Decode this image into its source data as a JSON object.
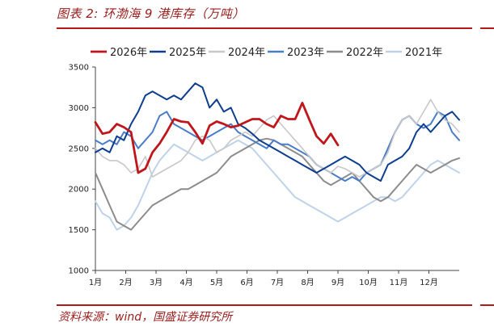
{
  "header": {
    "title": "图表 2:  环渤海 9 港库存（万吨）"
  },
  "footer": {
    "source": "资料来源：wind，国盛证券研究所"
  },
  "colors": {
    "accent": "#b51a1a"
  },
  "chart_data": {
    "type": "line",
    "title": "",
    "xlabel": "",
    "ylabel": "",
    "ylim": [
      1000,
      3500
    ],
    "yticks": [
      1000,
      1500,
      2000,
      2500,
      3000,
      3500
    ],
    "xticks": [
      "1月",
      "2月",
      "3月",
      "4月",
      "5月",
      "6月",
      "7月",
      "8月",
      "9月",
      "10月",
      "11月",
      "12月"
    ],
    "x_unit": "week of year (1-52)",
    "legend_position": "top",
    "grid": false,
    "series": [
      {
        "name": "2026年",
        "color": "#c0161b",
        "width": 2.8,
        "x": [
          1,
          2,
          3,
          4,
          5,
          6,
          7,
          8,
          9,
          10,
          11,
          12,
          13,
          14,
          15,
          16,
          17,
          18,
          19,
          20,
          21,
          22,
          23,
          24,
          25,
          26,
          27,
          28,
          29,
          30,
          31,
          32,
          33,
          34,
          35
        ],
        "y": [
          2820,
          2680,
          2700,
          2800,
          2760,
          2700,
          2200,
          2250,
          2450,
          2560,
          2700,
          2860,
          2830,
          2820,
          2700,
          2560,
          2780,
          2830,
          2800,
          2760,
          2780,
          2820,
          2860,
          2860,
          2800,
          2760,
          2900,
          2860,
          2860,
          3060,
          2850,
          2650,
          2560,
          2680,
          2540
        ]
      },
      {
        "name": "2025年",
        "color": "#0c3d8f",
        "width": 2.0,
        "x": [
          1,
          2,
          3,
          4,
          5,
          6,
          7,
          8,
          9,
          10,
          11,
          12,
          13,
          14,
          15,
          16,
          17,
          18,
          19,
          20,
          21,
          22,
          23,
          24,
          25,
          26,
          27,
          28,
          29,
          30,
          31,
          32,
          33,
          34,
          35,
          36,
          37,
          38,
          39,
          40,
          41,
          42,
          43,
          44,
          45,
          46,
          47,
          48,
          49,
          50,
          51,
          52
        ],
        "y": [
          2450,
          2500,
          2450,
          2650,
          2600,
          2800,
          2950,
          3150,
          3200,
          3150,
          3100,
          3150,
          3100,
          3200,
          3300,
          3250,
          3000,
          3100,
          2950,
          3000,
          2800,
          2750,
          2680,
          2600,
          2550,
          2500,
          2450,
          2400,
          2350,
          2300,
          2250,
          2200,
          2250,
          2300,
          2350,
          2400,
          2350,
          2300,
          2200,
          2150,
          2100,
          2300,
          2350,
          2400,
          2500,
          2700,
          2800,
          2700,
          2800,
          2900,
          2950,
          2850
        ]
      },
      {
        "name": "2024年",
        "color": "#c8c8c8",
        "width": 1.6,
        "x": [
          1,
          2,
          3,
          4,
          5,
          6,
          7,
          8,
          9,
          10,
          11,
          12,
          13,
          14,
          15,
          16,
          17,
          18,
          19,
          20,
          21,
          22,
          23,
          24,
          25,
          26,
          27,
          28,
          29,
          30,
          31,
          32,
          33,
          34,
          35,
          36,
          37,
          38,
          39,
          40,
          41,
          42,
          43,
          44,
          45,
          46,
          47,
          48,
          49,
          50,
          51,
          52
        ],
        "y": [
          2500,
          2400,
          2350,
          2350,
          2300,
          2200,
          2250,
          2400,
          2150,
          2200,
          2250,
          2300,
          2350,
          2450,
          2600,
          2650,
          2600,
          2450,
          2500,
          2600,
          2650,
          2700,
          2650,
          2750,
          2850,
          2900,
          2800,
          2700,
          2600,
          2500,
          2400,
          2300,
          2250,
          2200,
          2280,
          2250,
          2200,
          2150,
          2200,
          2250,
          2300,
          2450,
          2700,
          2850,
          2900,
          2800,
          2950,
          3100,
          2950,
          2850,
          2800,
          2700
        ]
      },
      {
        "name": "2023年",
        "color": "#4a7dc8",
        "width": 2.0,
        "x": [
          1,
          2,
          3,
          4,
          5,
          6,
          7,
          8,
          9,
          10,
          11,
          12,
          13,
          14,
          15,
          16,
          17,
          18,
          19,
          20,
          21,
          22,
          23,
          24,
          25,
          26,
          27,
          28,
          29,
          30,
          31,
          32,
          33,
          34,
          35,
          36,
          37,
          38,
          39,
          40,
          41,
          42,
          43,
          44,
          45,
          46,
          47,
          48,
          49,
          50,
          51,
          52
        ],
        "y": [
          2600,
          2550,
          2600,
          2550,
          2700,
          2650,
          2500,
          2600,
          2700,
          2900,
          2950,
          2800,
          2750,
          2700,
          2650,
          2600,
          2650,
          2700,
          2750,
          2800,
          2700,
          2650,
          2600,
          2550,
          2500,
          2600,
          2550,
          2550,
          2500,
          2450,
          2400,
          2300,
          2250,
          2200,
          2150,
          2100,
          2150,
          2100,
          2200,
          2250,
          2300,
          2500,
          2700,
          2850,
          2900,
          2800,
          2750,
          2800,
          2950,
          2900,
          2700,
          2600
        ]
      },
      {
        "name": "2022年",
        "color": "#8c8c8c",
        "width": 2.0,
        "x": [
          1,
          2,
          3,
          4,
          5,
          6,
          7,
          8,
          9,
          10,
          11,
          12,
          13,
          14,
          15,
          16,
          17,
          18,
          19,
          20,
          21,
          22,
          23,
          24,
          25,
          26,
          27,
          28,
          29,
          30,
          31,
          32,
          33,
          34,
          35,
          36,
          37,
          38,
          39,
          40,
          41,
          42,
          43,
          44,
          45,
          46,
          47,
          48,
          49,
          50,
          51,
          52
        ],
        "y": [
          2200,
          2000,
          1800,
          1600,
          1550,
          1500,
          1600,
          1700,
          1800,
          1850,
          1900,
          1950,
          2000,
          2000,
          2050,
          2100,
          2150,
          2200,
          2300,
          2400,
          2450,
          2500,
          2550,
          2600,
          2620,
          2600,
          2550,
          2500,
          2450,
          2400,
          2300,
          2200,
          2100,
          2050,
          2100,
          2150,
          2200,
          2100,
          2000,
          1900,
          1850,
          1900,
          2000,
          2100,
          2200,
          2300,
          2250,
          2200,
          2250,
          2300,
          2350,
          2380
        ]
      },
      {
        "name": "2021年",
        "color": "#bed3ea",
        "width": 2.0,
        "x": [
          1,
          2,
          3,
          4,
          5,
          6,
          7,
          8,
          9,
          10,
          11,
          12,
          13,
          14,
          15,
          16,
          17,
          18,
          19,
          20,
          21,
          22,
          23,
          24,
          25,
          26,
          27,
          28,
          29,
          30,
          31,
          32,
          33,
          34,
          35,
          36,
          37,
          38,
          39,
          40,
          41,
          42,
          43,
          44,
          45,
          46,
          47,
          48,
          49,
          50,
          51,
          52
        ],
        "y": [
          1850,
          1700,
          1650,
          1500,
          1550,
          1650,
          1800,
          2000,
          2200,
          2350,
          2450,
          2550,
          2500,
          2450,
          2400,
          2350,
          2400,
          2450,
          2500,
          2550,
          2600,
          2550,
          2500,
          2400,
          2300,
          2200,
          2100,
          2000,
          1900,
          1850,
          1800,
          1750,
          1700,
          1650,
          1600,
          1650,
          1700,
          1750,
          1800,
          1850,
          1900,
          1900,
          1850,
          1900,
          2000,
          2100,
          2200,
          2300,
          2350,
          2300,
          2250,
          2200
        ]
      }
    ]
  }
}
